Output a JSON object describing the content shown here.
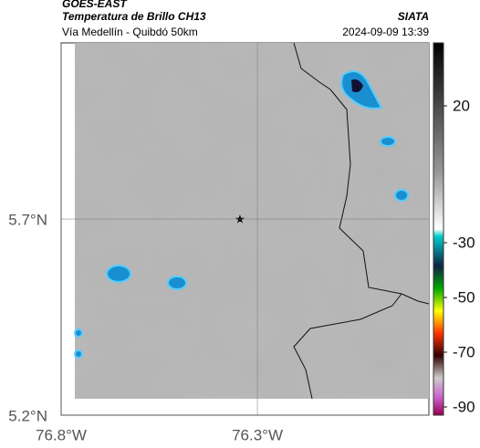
{
  "header": {
    "satellite": "GOES-EAST",
    "product": "Temperatura de Brillo CH13",
    "region": "Vía Medellín - Quibdó 50km",
    "source": "SIATA",
    "datetime": "2024-09-09 13:39"
  },
  "map": {
    "lonlim": [
      -76.8,
      -75.863
    ],
    "latlim": [
      5.2,
      6.149
    ],
    "lonticks": [
      {
        "value": -76.8,
        "label": "76.8°W"
      },
      {
        "value": -76.3,
        "label": "76.3°W"
      }
    ],
    "latticks": [
      {
        "value": 5.7,
        "label": "5.7°N"
      },
      {
        "value": 5.2,
        "label": "5.2°N"
      }
    ]
  },
  "colorbar": {
    "limits": [
      -93,
      43
    ],
    "ticks": [
      20,
      -30,
      -50,
      -70,
      -90
    ]
  }
}
